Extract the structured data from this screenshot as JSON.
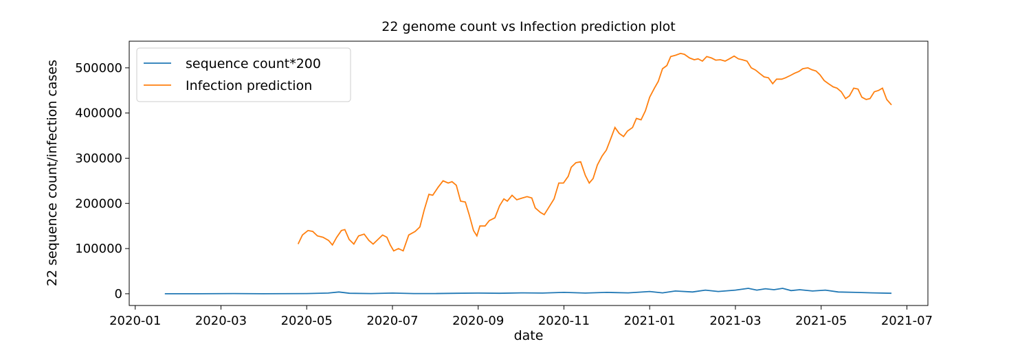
{
  "chart_data": {
    "type": "line",
    "title": "22 genome count vs Infection prediction plot",
    "x_label": "date",
    "y_label": "22 sequence count/infection cases",
    "xlim": [
      -0.14,
      18.49
    ],
    "ylim": [
      -26000,
      559000
    ],
    "xticks": [
      {
        "value": 0,
        "label": "2020-01"
      },
      {
        "value": 2,
        "label": "2020-03"
      },
      {
        "value": 4,
        "label": "2020-05"
      },
      {
        "value": 6,
        "label": "2020-07"
      },
      {
        "value": 8,
        "label": "2020-09"
      },
      {
        "value": 10,
        "label": "2020-11"
      },
      {
        "value": 12,
        "label": "2021-01"
      },
      {
        "value": 14,
        "label": "2021-03"
      },
      {
        "value": 16,
        "label": "2021-05"
      },
      {
        "value": 18,
        "label": "2021-07"
      }
    ],
    "yticks": [
      0,
      100000,
      200000,
      300000,
      400000,
      500000
    ],
    "legend": "upper left",
    "series": [
      {
        "name": "sequence count*200",
        "color": "#1f77b4",
        "x": [
          0.69,
          1.5,
          2.3,
          3.0,
          4.0,
          4.5,
          4.75,
          5.0,
          5.5,
          6.0,
          6.5,
          7.0,
          7.5,
          8.0,
          8.5,
          9.0,
          9.5,
          10.0,
          10.5,
          11.0,
          11.5,
          12.0,
          12.3,
          12.6,
          13.0,
          13.3,
          13.6,
          14.0,
          14.3,
          14.5,
          14.7,
          14.9,
          15.1,
          15.3,
          15.5,
          15.8,
          16.1,
          16.4,
          16.8,
          17.2,
          17.64
        ],
        "values": [
          0,
          0,
          500,
          0,
          500,
          1500,
          4000,
          1000,
          500,
          1500,
          500,
          500,
          1000,
          1500,
          1000,
          2000,
          1500,
          3000,
          1500,
          3000,
          2000,
          5000,
          2000,
          6000,
          4000,
          8000,
          5000,
          8000,
          12000,
          8000,
          11000,
          9000,
          12000,
          7000,
          9000,
          6000,
          8000,
          4000,
          3000,
          2000,
          1000
        ]
      },
      {
        "name": "Infection prediction",
        "color": "#ff7f0e",
        "x": [
          3.8,
          3.9,
          4.03,
          4.14,
          4.25,
          4.38,
          4.51,
          4.6,
          4.7,
          4.81,
          4.89,
          4.99,
          5.1,
          5.21,
          5.34,
          5.45,
          5.55,
          5.66,
          5.77,
          5.87,
          5.95,
          6.03,
          6.14,
          6.25,
          6.38,
          6.53,
          6.64,
          6.74,
          6.85,
          6.94,
          7.06,
          7.18,
          7.3,
          7.39,
          7.49,
          7.59,
          7.7,
          7.79,
          7.89,
          7.97,
          8.04,
          8.16,
          8.26,
          8.39,
          8.5,
          8.6,
          8.68,
          8.79,
          8.9,
          9.03,
          9.14,
          9.25,
          9.33,
          9.45,
          9.54,
          9.64,
          9.77,
          9.88,
          9.99,
          10.1,
          10.17,
          10.28,
          10.39,
          10.5,
          10.59,
          10.68,
          10.78,
          10.89,
          10.99,
          11.08,
          11.19,
          11.29,
          11.39,
          11.48,
          11.6,
          11.69,
          11.8,
          11.9,
          12.0,
          12.11,
          12.2,
          12.3,
          12.4,
          12.49,
          12.61,
          12.72,
          12.81,
          12.93,
          13.04,
          13.13,
          13.23,
          13.33,
          13.44,
          13.54,
          13.65,
          13.76,
          13.86,
          13.97,
          14.07,
          14.16,
          14.27,
          14.37,
          14.47,
          14.56,
          14.67,
          14.77,
          14.87,
          14.96,
          15.08,
          15.17,
          15.28,
          15.38,
          15.48,
          15.57,
          15.69,
          15.78,
          15.88,
          15.97,
          16.07,
          16.17,
          16.28,
          16.37,
          16.47,
          16.57,
          16.66,
          16.76,
          16.86,
          16.95,
          17.05,
          17.14,
          17.24,
          17.34,
          17.43,
          17.53,
          17.64
        ],
        "values": [
          110000,
          130000,
          140000,
          138000,
          128000,
          125000,
          118000,
          108000,
          125000,
          140000,
          142000,
          120000,
          110000,
          128000,
          132000,
          118000,
          110000,
          120000,
          130000,
          125000,
          108000,
          95000,
          100000,
          95000,
          130000,
          138000,
          148000,
          185000,
          220000,
          218000,
          235000,
          250000,
          245000,
          248000,
          240000,
          205000,
          203000,
          175000,
          140000,
          128000,
          150000,
          150000,
          162000,
          168000,
          195000,
          210000,
          205000,
          218000,
          208000,
          212000,
          215000,
          212000,
          190000,
          180000,
          175000,
          190000,
          210000,
          245000,
          245000,
          260000,
          280000,
          290000,
          292000,
          262000,
          245000,
          255000,
          285000,
          305000,
          318000,
          340000,
          368000,
          355000,
          348000,
          360000,
          368000,
          388000,
          385000,
          405000,
          435000,
          455000,
          470000,
          498000,
          505000,
          525000,
          528000,
          532000,
          530000,
          522000,
          518000,
          520000,
          515000,
          525000,
          522000,
          517000,
          518000,
          515000,
          520000,
          526000,
          520000,
          518000,
          515000,
          500000,
          495000,
          488000,
          480000,
          478000,
          465000,
          475000,
          475000,
          478000,
          483000,
          488000,
          492000,
          498000,
          500000,
          496000,
          493000,
          485000,
          472000,
          465000,
          458000,
          455000,
          447000,
          432000,
          438000,
          455000,
          453000,
          435000,
          430000,
          432000,
          447000,
          450000,
          455000,
          430000,
          418000
        ]
      }
    ]
  }
}
